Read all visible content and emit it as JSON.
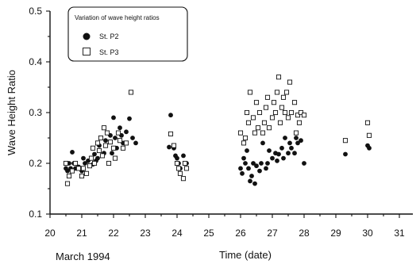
{
  "chart_data": {
    "type": "scatter",
    "title": "",
    "xlabel": "Time (date)",
    "ylabel": "Wave Height Ratio",
    "x_note": "March 1994",
    "xlim": [
      20,
      31
    ],
    "ylim": [
      0.1,
      0.5
    ],
    "x_ticks": [
      "20",
      "21",
      "22",
      "23",
      "24",
      "25",
      "26",
      "27",
      "28",
      "29",
      "30",
      "31"
    ],
    "y_ticks": [
      "0.1",
      "0.2",
      "0.3",
      "0.4",
      "0.5"
    ],
    "grid": false,
    "legend": {
      "title": "Variation of wave height ratios",
      "placement": "top-left"
    },
    "series": [
      {
        "name": "St. P2",
        "marker": "filled-circle",
        "points": [
          [
            20.5,
            0.19
          ],
          [
            20.55,
            0.185
          ],
          [
            20.6,
            0.2
          ],
          [
            20.65,
            0.19
          ],
          [
            20.7,
            0.222
          ],
          [
            20.75,
            0.2
          ],
          [
            20.8,
            0.19
          ],
          [
            20.9,
            0.193
          ],
          [
            21.0,
            0.185
          ],
          [
            21.05,
            0.21
          ],
          [
            21.1,
            0.2
          ],
          [
            21.2,
            0.205
          ],
          [
            21.3,
            0.21
          ],
          [
            21.35,
            0.198
          ],
          [
            21.4,
            0.218
          ],
          [
            21.45,
            0.205
          ],
          [
            21.5,
            0.21
          ],
          [
            21.55,
            0.235
          ],
          [
            21.6,
            0.25
          ],
          [
            21.7,
            0.22
          ],
          [
            21.75,
            0.245
          ],
          [
            21.8,
            0.26
          ],
          [
            21.85,
            0.2
          ],
          [
            21.9,
            0.255
          ],
          [
            21.95,
            0.22
          ],
          [
            22.0,
            0.29
          ],
          [
            22.05,
            0.25
          ],
          [
            22.1,
            0.23
          ],
          [
            22.2,
            0.27
          ],
          [
            22.25,
            0.255
          ],
          [
            22.3,
            0.24
          ],
          [
            22.4,
            0.262
          ],
          [
            22.5,
            0.288
          ],
          [
            22.6,
            0.25
          ],
          [
            22.7,
            0.24
          ],
          [
            23.75,
            0.232
          ],
          [
            23.8,
            0.295
          ],
          [
            23.9,
            0.23
          ],
          [
            23.95,
            0.215
          ],
          [
            24.0,
            0.21
          ],
          [
            24.05,
            0.2
          ],
          [
            24.1,
            0.19
          ],
          [
            24.2,
            0.215
          ],
          [
            24.3,
            0.2
          ],
          [
            26.0,
            0.19
          ],
          [
            26.05,
            0.18
          ],
          [
            26.1,
            0.21
          ],
          [
            26.15,
            0.2
          ],
          [
            26.2,
            0.225
          ],
          [
            26.25,
            0.19
          ],
          [
            26.3,
            0.165
          ],
          [
            26.35,
            0.175
          ],
          [
            26.4,
            0.2
          ],
          [
            26.45,
            0.16
          ],
          [
            26.5,
            0.195
          ],
          [
            26.6,
            0.185
          ],
          [
            26.65,
            0.2
          ],
          [
            26.7,
            0.24
          ],
          [
            26.8,
            0.19
          ],
          [
            26.85,
            0.2
          ],
          [
            26.9,
            0.225
          ],
          [
            27.0,
            0.21
          ],
          [
            27.1,
            0.22
          ],
          [
            27.15,
            0.205
          ],
          [
            27.2,
            0.218
          ],
          [
            27.3,
            0.23
          ],
          [
            27.35,
            0.21
          ],
          [
            27.4,
            0.25
          ],
          [
            27.5,
            0.22
          ],
          [
            27.55,
            0.24
          ],
          [
            27.6,
            0.23
          ],
          [
            27.7,
            0.22
          ],
          [
            27.75,
            0.25
          ],
          [
            27.8,
            0.24
          ],
          [
            27.9,
            0.245
          ],
          [
            28.0,
            0.2
          ],
          [
            29.3,
            0.218
          ],
          [
            30.0,
            0.235
          ],
          [
            30.05,
            0.23
          ]
        ]
      },
      {
        "name": "St. P3",
        "marker": "open-square",
        "points": [
          [
            20.5,
            0.2
          ],
          [
            20.55,
            0.16
          ],
          [
            20.6,
            0.175
          ],
          [
            20.7,
            0.185
          ],
          [
            20.8,
            0.2
          ],
          [
            20.9,
            0.19
          ],
          [
            21.0,
            0.175
          ],
          [
            21.05,
            0.19
          ],
          [
            21.15,
            0.18
          ],
          [
            21.25,
            0.195
          ],
          [
            21.3,
            0.21
          ],
          [
            21.35,
            0.23
          ],
          [
            21.4,
            0.2
          ],
          [
            21.5,
            0.24
          ],
          [
            21.55,
            0.225
          ],
          [
            21.6,
            0.25
          ],
          [
            21.65,
            0.215
          ],
          [
            21.7,
            0.27
          ],
          [
            21.75,
            0.235
          ],
          [
            21.8,
            0.26
          ],
          [
            21.85,
            0.2
          ],
          [
            21.9,
            0.242
          ],
          [
            22.0,
            0.23
          ],
          [
            22.05,
            0.21
          ],
          [
            22.15,
            0.26
          ],
          [
            22.2,
            0.245
          ],
          [
            22.3,
            0.23
          ],
          [
            22.4,
            0.24
          ],
          [
            22.55,
            0.34
          ],
          [
            23.8,
            0.258
          ],
          [
            23.9,
            0.235
          ],
          [
            24.0,
            0.2
          ],
          [
            24.05,
            0.19
          ],
          [
            24.1,
            0.18
          ],
          [
            24.2,
            0.17
          ],
          [
            24.25,
            0.2
          ],
          [
            24.3,
            0.19
          ],
          [
            26.0,
            0.26
          ],
          [
            26.1,
            0.24
          ],
          [
            26.15,
            0.25
          ],
          [
            26.2,
            0.3
          ],
          [
            26.25,
            0.28
          ],
          [
            26.3,
            0.34
          ],
          [
            26.4,
            0.29
          ],
          [
            26.45,
            0.26
          ],
          [
            26.5,
            0.32
          ],
          [
            26.55,
            0.27
          ],
          [
            26.6,
            0.3
          ],
          [
            26.7,
            0.26
          ],
          [
            26.75,
            0.28
          ],
          [
            26.8,
            0.31
          ],
          [
            26.85,
            0.33
          ],
          [
            26.9,
            0.27
          ],
          [
            27.0,
            0.29
          ],
          [
            27.05,
            0.32
          ],
          [
            27.1,
            0.3
          ],
          [
            27.15,
            0.34
          ],
          [
            27.2,
            0.37
          ],
          [
            27.25,
            0.28
          ],
          [
            27.3,
            0.31
          ],
          [
            27.35,
            0.33
          ],
          [
            27.4,
            0.3
          ],
          [
            27.45,
            0.34
          ],
          [
            27.5,
            0.29
          ],
          [
            27.55,
            0.36
          ],
          [
            27.6,
            0.3
          ],
          [
            27.7,
            0.32
          ],
          [
            27.75,
            0.26
          ],
          [
            27.8,
            0.295
          ],
          [
            27.85,
            0.28
          ],
          [
            27.9,
            0.3
          ],
          [
            28.0,
            0.295
          ],
          [
            29.3,
            0.245
          ],
          [
            30.0,
            0.28
          ],
          [
            30.05,
            0.255
          ]
        ]
      }
    ]
  }
}
